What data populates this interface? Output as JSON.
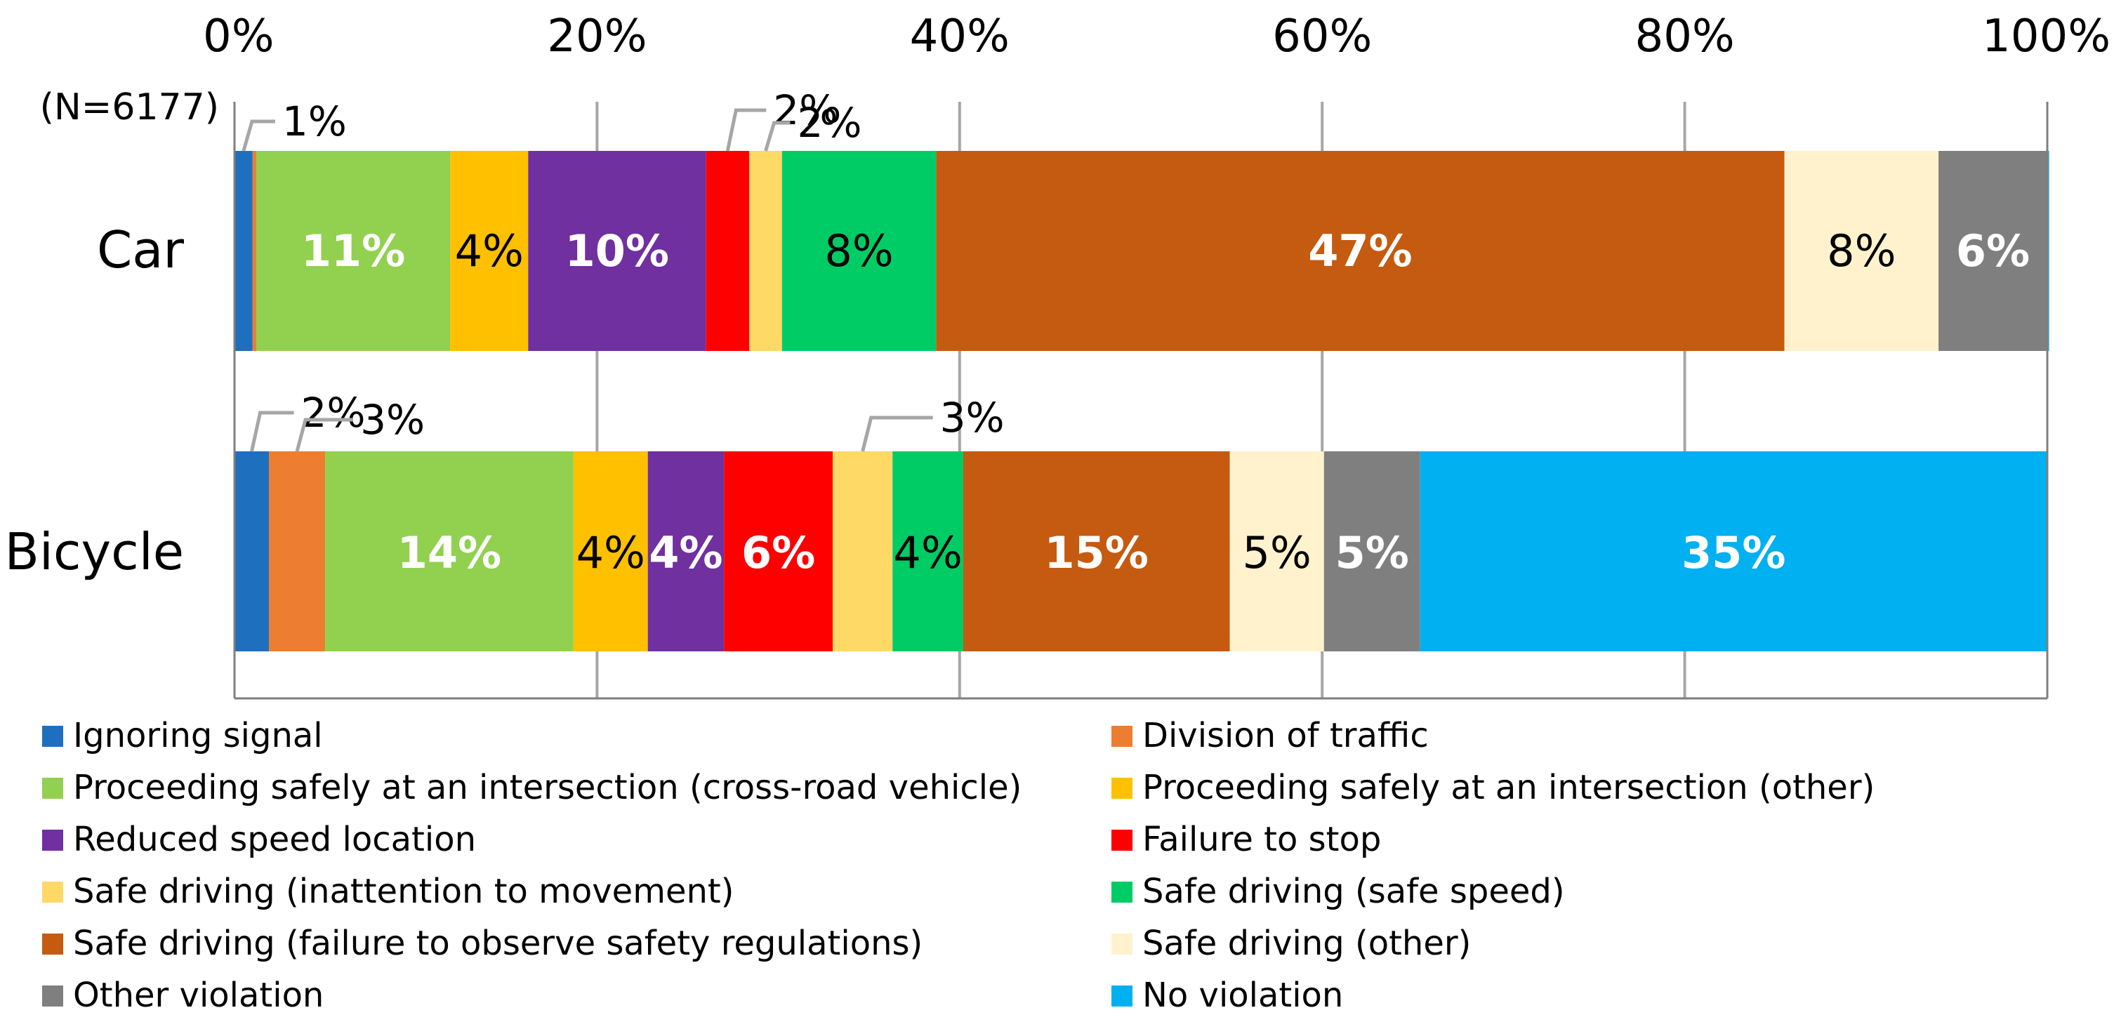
{
  "chart_data": {
    "type": "bar",
    "orientation": "horizontal",
    "stacked": true,
    "sample_size_label": "(N=6177)",
    "xlim": [
      0,
      100
    ],
    "x_ticks": [
      0,
      20,
      40,
      60,
      80,
      100
    ],
    "x_tick_labels": [
      "0%",
      "20%",
      "40%",
      "60%",
      "80%",
      "100%"
    ],
    "grid": true,
    "legend_position": "bottom",
    "categories": [
      "Car",
      "Bicycle"
    ],
    "series": [
      {
        "name": "Ignoring signal",
        "color": "#1F6FBF",
        "values": [
          1.0,
          1.9
        ],
        "labels": [
          "",
          ""
        ],
        "callouts": [
          "1%",
          "2%"
        ],
        "label_color": ""
      },
      {
        "name": "Division of traffic",
        "color": "#ED7D31",
        "values": [
          0.2,
          3.1
        ],
        "labels": [
          "",
          ""
        ],
        "callouts": [
          "",
          "3%"
        ],
        "label_color": ""
      },
      {
        "name": "Proceeding safely at an intersection (cross-road vehicle)",
        "color": "#92D050",
        "values": [
          10.7,
          13.7
        ],
        "labels": [
          "11%",
          "14%"
        ],
        "callouts": [
          "",
          ""
        ],
        "label_color": "#ffffff"
      },
      {
        "name": "Proceeding safely at an intersection (other)",
        "color": "#FFC000",
        "values": [
          4.3,
          4.1
        ],
        "labels": [
          "4%",
          "4%"
        ],
        "callouts": [
          "",
          ""
        ],
        "label_color": "#000000"
      },
      {
        "name": "Reduced speed location",
        "color": "#7030A0",
        "values": [
          9.8,
          4.2
        ],
        "labels": [
          "10%",
          "4%"
        ],
        "callouts": [
          "",
          ""
        ],
        "label_color": "#ffffff"
      },
      {
        "name": "Failure to stop",
        "color": "#FF0000",
        "values": [
          2.4,
          6.0
        ],
        "labels": [
          "",
          "6%"
        ],
        "callouts": [
          "2%",
          ""
        ],
        "label_color": "#ffffff"
      },
      {
        "name": "Safe driving (inattention to movement)",
        "color": "#FFD966",
        "values": [
          1.8,
          3.3
        ],
        "labels": [
          "",
          ""
        ],
        "callouts": [
          "2%",
          "3%"
        ],
        "label_color": ""
      },
      {
        "name": "Safe driving (safe speed)",
        "color": "#00CC66",
        "values": [
          8.5,
          3.9
        ],
        "labels": [
          "8%",
          "4%"
        ],
        "callouts": [
          "",
          ""
        ],
        "label_color": "#000000"
      },
      {
        "name": "Safe driving (failure to observe safety regulations)",
        "color": "#C55A11",
        "values": [
          46.8,
          14.7
        ],
        "labels": [
          "47%",
          "15%"
        ],
        "callouts": [
          "",
          ""
        ],
        "label_color": "#ffffff"
      },
      {
        "name": "Safe driving (other)",
        "color": "#FFF2CC",
        "values": [
          8.5,
          5.2
        ],
        "labels": [
          "8%",
          "5%"
        ],
        "callouts": [
          "",
          ""
        ],
        "label_color": "#000000"
      },
      {
        "name": "Other violation",
        "color": "#7F7F7F",
        "values": [
          6.0,
          5.3
        ],
        "labels": [
          "6%",
          "5%"
        ],
        "callouts": [
          "",
          ""
        ],
        "label_color": "#ffffff"
      },
      {
        "name": "No violation",
        "color": "#00B0F0",
        "values": [
          0.1,
          34.6
        ],
        "labels": [
          "",
          "35%"
        ],
        "callouts": [
          "",
          ""
        ],
        "label_color": "#ffffff"
      }
    ]
  }
}
